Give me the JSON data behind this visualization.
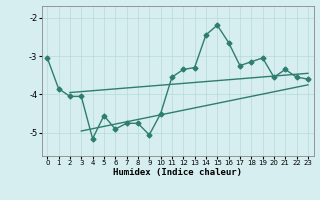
{
  "title": "",
  "xlabel": "Humidex (Indice chaleur)",
  "bg_color": "#d6eef0",
  "grid_color": "#b8d8db",
  "line_color": "#2e7d70",
  "xlim": [
    -0.5,
    23.5
  ],
  "ylim": [
    -5.6,
    -1.7
  ],
  "yticks": [
    -5,
    -4,
    -3,
    -2
  ],
  "xticks": [
    0,
    1,
    2,
    3,
    4,
    5,
    6,
    7,
    8,
    9,
    10,
    11,
    12,
    13,
    14,
    15,
    16,
    17,
    18,
    19,
    20,
    21,
    22,
    23
  ],
  "curve1_x": [
    0,
    1,
    2,
    3,
    4,
    5,
    6,
    7,
    8,
    9,
    10,
    11,
    12,
    13,
    14,
    15,
    16,
    17,
    18,
    19,
    20,
    21,
    22,
    23
  ],
  "curve1_y": [
    -3.05,
    -3.85,
    -4.05,
    -4.05,
    -5.15,
    -4.55,
    -4.9,
    -4.75,
    -4.75,
    -5.05,
    -4.5,
    -3.55,
    -3.35,
    -3.3,
    -2.45,
    -2.2,
    -2.65,
    -3.25,
    -3.15,
    -3.05,
    -3.55,
    -3.35,
    -3.55,
    -3.6
  ],
  "line2_x": [
    2,
    23
  ],
  "line2_y": [
    -3.95,
    -3.45
  ],
  "line3_x": [
    3,
    23
  ],
  "line3_y": [
    -4.95,
    -3.75
  ],
  "markersize": 2.5,
  "linewidth": 1.0
}
